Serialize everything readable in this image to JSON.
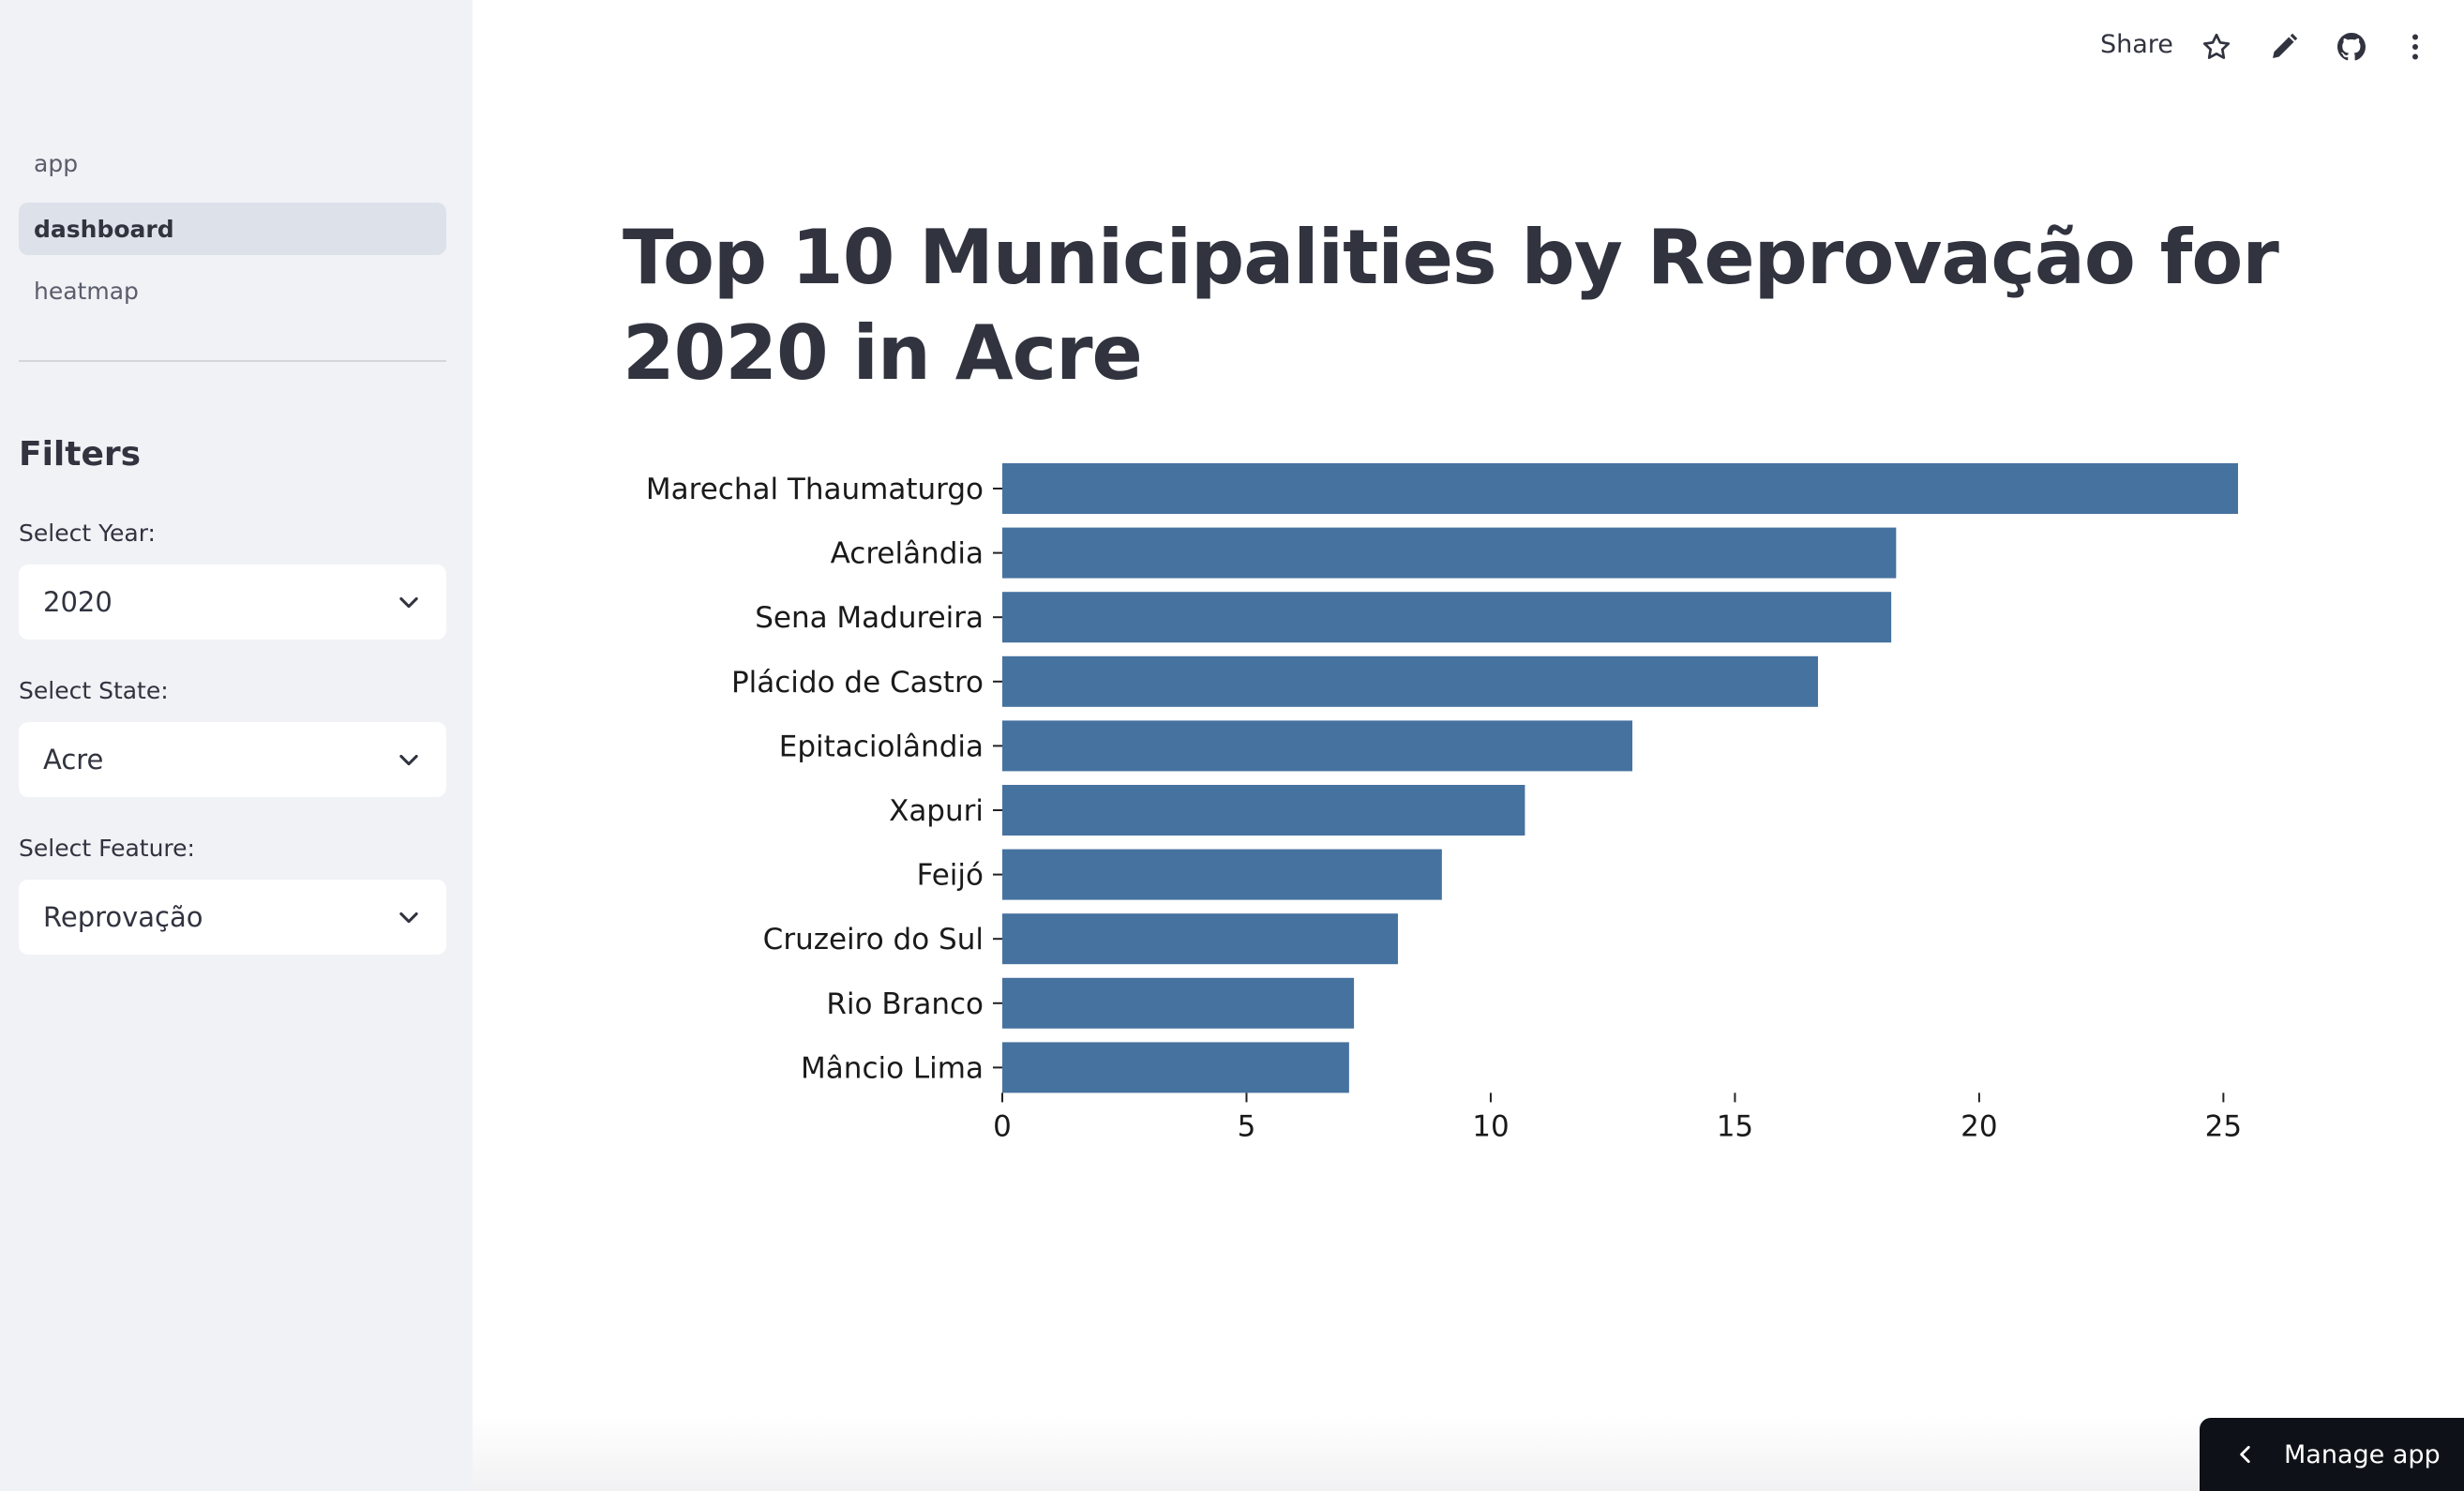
{
  "sidebar": {
    "nav": [
      {
        "label": "app",
        "active": false
      },
      {
        "label": "dashboard",
        "active": true
      },
      {
        "label": "heatmap",
        "active": false
      }
    ],
    "filters_title": "Filters",
    "year": {
      "label": "Select Year:",
      "value": "2020"
    },
    "state": {
      "label": "Select State:",
      "value": "Acre"
    },
    "feature": {
      "label": "Select Feature:",
      "value": "Reprovação"
    }
  },
  "toolbar": {
    "share_label": "Share",
    "icons": [
      "star-icon",
      "pencil-icon",
      "github-icon",
      "more-vertical-icon"
    ]
  },
  "main": {
    "title": "Top 10 Municipalities by Reprovação for 2020 in Acre"
  },
  "manage_app": {
    "label": "Manage app"
  },
  "colors": {
    "bar": "#46729f",
    "sidebar_bg": "#f0f2f6",
    "text": "#31333f"
  },
  "chart_data": {
    "type": "bar",
    "orientation": "horizontal",
    "title": "Top 10 Municipalities by Reprovação for 2020 in Acre",
    "categories": [
      "Marechal Thaumaturgo",
      "Acrelândia",
      "Sena Madureira",
      "Plácido de Castro",
      "Epitaciolândia",
      "Xapuri",
      "Feijó",
      "Cruzeiro do Sul",
      "Rio Branco",
      "Mâncio Lima"
    ],
    "values": [
      25.3,
      18.3,
      18.2,
      16.7,
      12.9,
      10.7,
      9.0,
      8.1,
      7.2,
      7.1
    ],
    "xticks": [
      0,
      5,
      10,
      15,
      20,
      25
    ],
    "xlim": [
      0,
      26.5
    ],
    "xlabel": "",
    "ylabel": ""
  }
}
